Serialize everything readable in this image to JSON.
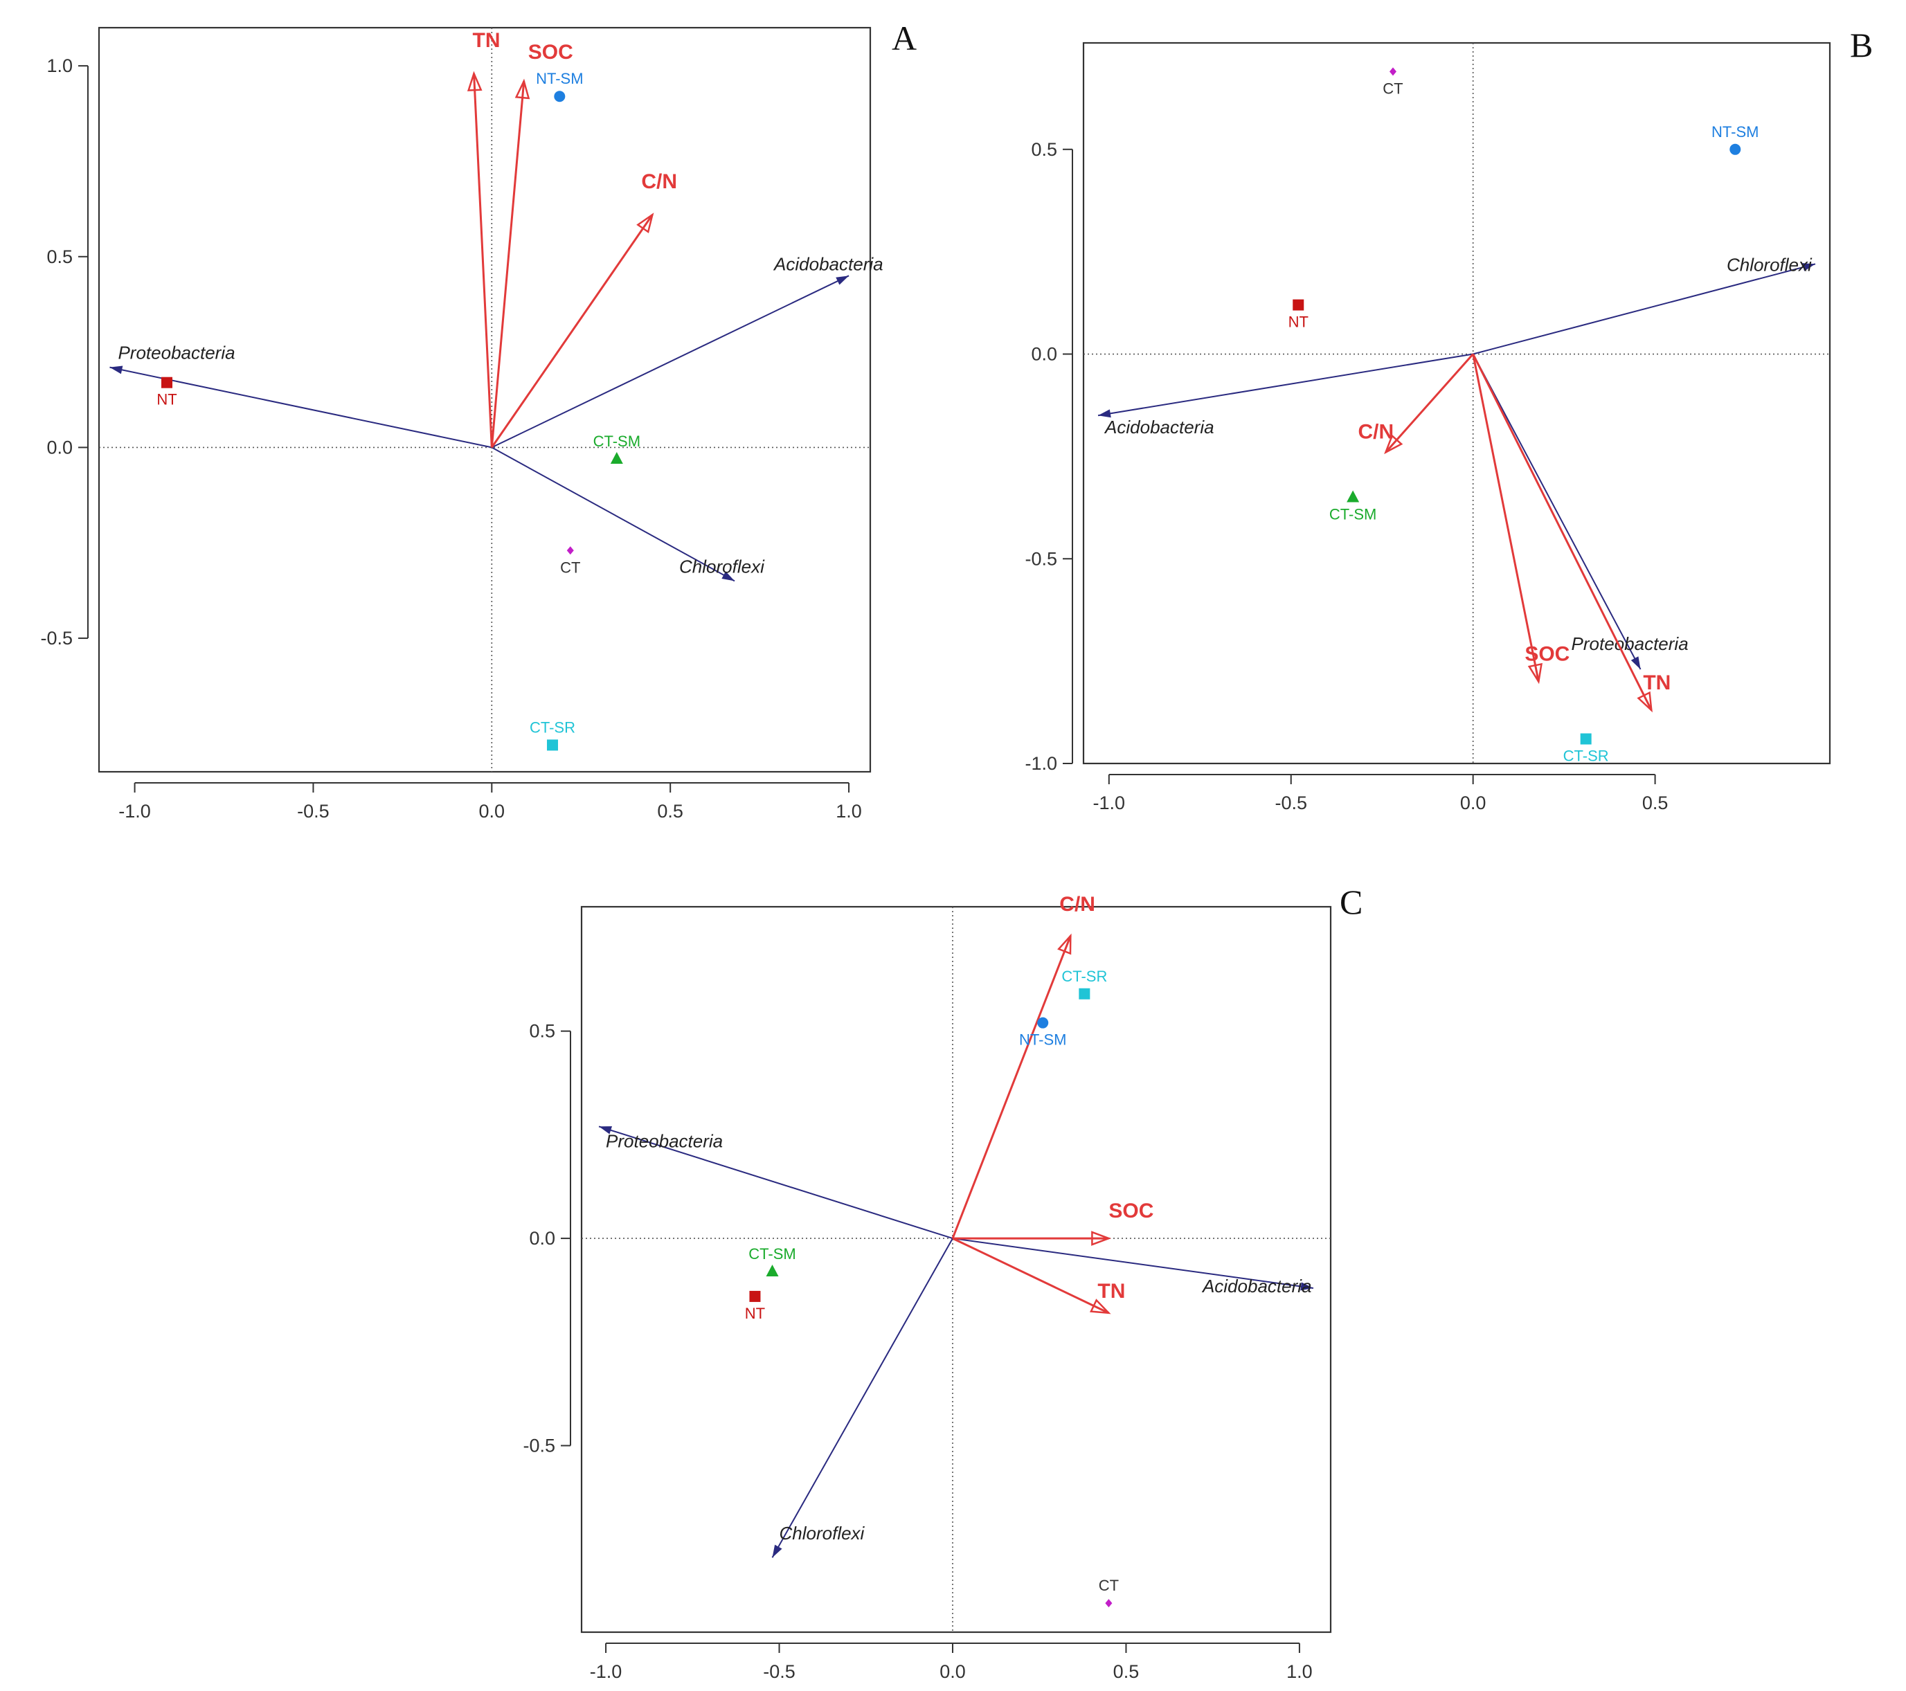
{
  "chart_data": [
    {
      "type": "scatter",
      "panel": "A",
      "xlim": [
        -1.1,
        1.06
      ],
      "ylim": [
        -0.85,
        1.1
      ],
      "xticks": [
        "-1.0",
        "-0.5",
        "0.0",
        "0.5",
        "1.0"
      ],
      "xtick_values": [
        -1,
        -0.5,
        0,
        0.5,
        1
      ],
      "yticks": [
        "1.0",
        "0.5",
        "0.0",
        "-0.5"
      ],
      "ytick_values": [
        1,
        0.5,
        0,
        -0.5
      ],
      "env_arrows": [
        {
          "name": "TN",
          "x": -0.05,
          "y": 0.98
        },
        {
          "name": "SOC",
          "x": 0.09,
          "y": 0.96
        },
        {
          "name": "C/N",
          "x": 0.45,
          "y": 0.61
        }
      ],
      "bio_arrows": [
        {
          "name": "Acidobacteria",
          "x": 1.0,
          "y": 0.45
        },
        {
          "name": "Proteobacteria",
          "x": -1.07,
          "y": 0.21
        },
        {
          "name": "Chloroflexi",
          "x": 0.68,
          "y": -0.35
        }
      ],
      "sites": [
        {
          "name": "NT-SM",
          "x": 0.19,
          "y": 0.92,
          "shape": "circle",
          "color": "#1e7fe0"
        },
        {
          "name": "NT",
          "x": -0.91,
          "y": 0.17,
          "shape": "square",
          "color": "#c81414"
        },
        {
          "name": "CT-SM",
          "x": 0.35,
          "y": -0.03,
          "shape": "triangle",
          "color": "#1aab2c"
        },
        {
          "name": "CT",
          "x": 0.22,
          "y": -0.27,
          "shape": "diamond",
          "color": "#c21ec8"
        },
        {
          "name": "CT-SR",
          "x": 0.17,
          "y": -0.78,
          "shape": "square",
          "color": "#20c4d6"
        }
      ]
    },
    {
      "type": "scatter",
      "panel": "B",
      "xlim": [
        -1.07,
        0.98
      ],
      "ylim": [
        -1.0,
        0.76
      ],
      "xticks": [
        "-1.0",
        "-0.5",
        "0.0",
        "0.5"
      ],
      "xtick_values": [
        -1,
        -0.5,
        0,
        0.5
      ],
      "yticks": [
        "0.5",
        "0.0",
        "-0.5",
        "-1.0"
      ],
      "ytick_values": [
        0.5,
        0,
        -0.5,
        -1
      ],
      "env_arrows": [
        {
          "name": "C/N",
          "x": -0.24,
          "y": -0.24
        },
        {
          "name": "SOC",
          "x": 0.18,
          "y": -0.8
        },
        {
          "name": "TN",
          "x": 0.49,
          "y": -0.87
        }
      ],
      "bio_arrows": [
        {
          "name": "Chloroflexi",
          "x": 0.94,
          "y": 0.22
        },
        {
          "name": "Acidobacteria",
          "x": -1.03,
          "y": -0.15
        },
        {
          "name": "Proteobacteria",
          "x": 0.46,
          "y": -0.77
        }
      ],
      "sites": [
        {
          "name": "CT",
          "x": -0.22,
          "y": 0.69,
          "shape": "diamond",
          "color": "#c21ec8"
        },
        {
          "name": "NT-SM",
          "x": 0.72,
          "y": 0.5,
          "shape": "circle",
          "color": "#1e7fe0"
        },
        {
          "name": "NT",
          "x": -0.48,
          "y": 0.12,
          "shape": "square",
          "color": "#c81414"
        },
        {
          "name": "CT-SM",
          "x": -0.33,
          "y": -0.35,
          "shape": "triangle",
          "color": "#1aab2c"
        },
        {
          "name": "CT-SR",
          "x": 0.31,
          "y": -0.94,
          "shape": "square",
          "color": "#20c4d6"
        }
      ]
    },
    {
      "type": "scatter",
      "panel": "C",
      "xlim": [
        -1.07,
        1.09
      ],
      "ylim": [
        -0.95,
        0.8
      ],
      "xticks": [
        "-1.0",
        "-0.5",
        "0.0",
        "0.5",
        "1.0"
      ],
      "xtick_values": [
        -1,
        -0.5,
        0,
        0.5,
        1
      ],
      "yticks": [
        "0.5",
        "0.0",
        "-0.5"
      ],
      "ytick_values": [
        0.5,
        0,
        -0.5
      ],
      "env_arrows": [
        {
          "name": "C/N",
          "x": 0.34,
          "y": 0.73
        },
        {
          "name": "SOC",
          "x": 0.45,
          "y": 0.0
        },
        {
          "name": "TN",
          "x": 0.45,
          "y": -0.18
        }
      ],
      "bio_arrows": [
        {
          "name": "Proteobacteria",
          "x": -1.02,
          "y": 0.27
        },
        {
          "name": "Acidobacteria",
          "x": 1.04,
          "y": -0.12
        },
        {
          "name": "Chloroflexi",
          "x": -0.52,
          "y": -0.77
        }
      ],
      "sites": [
        {
          "name": "CT-SR",
          "x": 0.38,
          "y": 0.59,
          "shape": "square",
          "color": "#20c4d6"
        },
        {
          "name": "NT-SM",
          "x": 0.26,
          "y": 0.52,
          "shape": "circle",
          "color": "#1e7fe0"
        },
        {
          "name": "CT-SM",
          "x": -0.52,
          "y": -0.08,
          "shape": "triangle",
          "color": "#1aab2c"
        },
        {
          "name": "NT",
          "x": -0.57,
          "y": -0.14,
          "shape": "square",
          "color": "#c81414"
        },
        {
          "name": "CT",
          "x": 0.45,
          "y": -0.88,
          "shape": "diamond",
          "color": "#c21ec8"
        }
      ]
    }
  ],
  "colors": {
    "env_arrow": "#e23a3a",
    "bio_arrow": "#2a2a80",
    "frame": "#333333",
    "site_label_ct": "#333333"
  }
}
